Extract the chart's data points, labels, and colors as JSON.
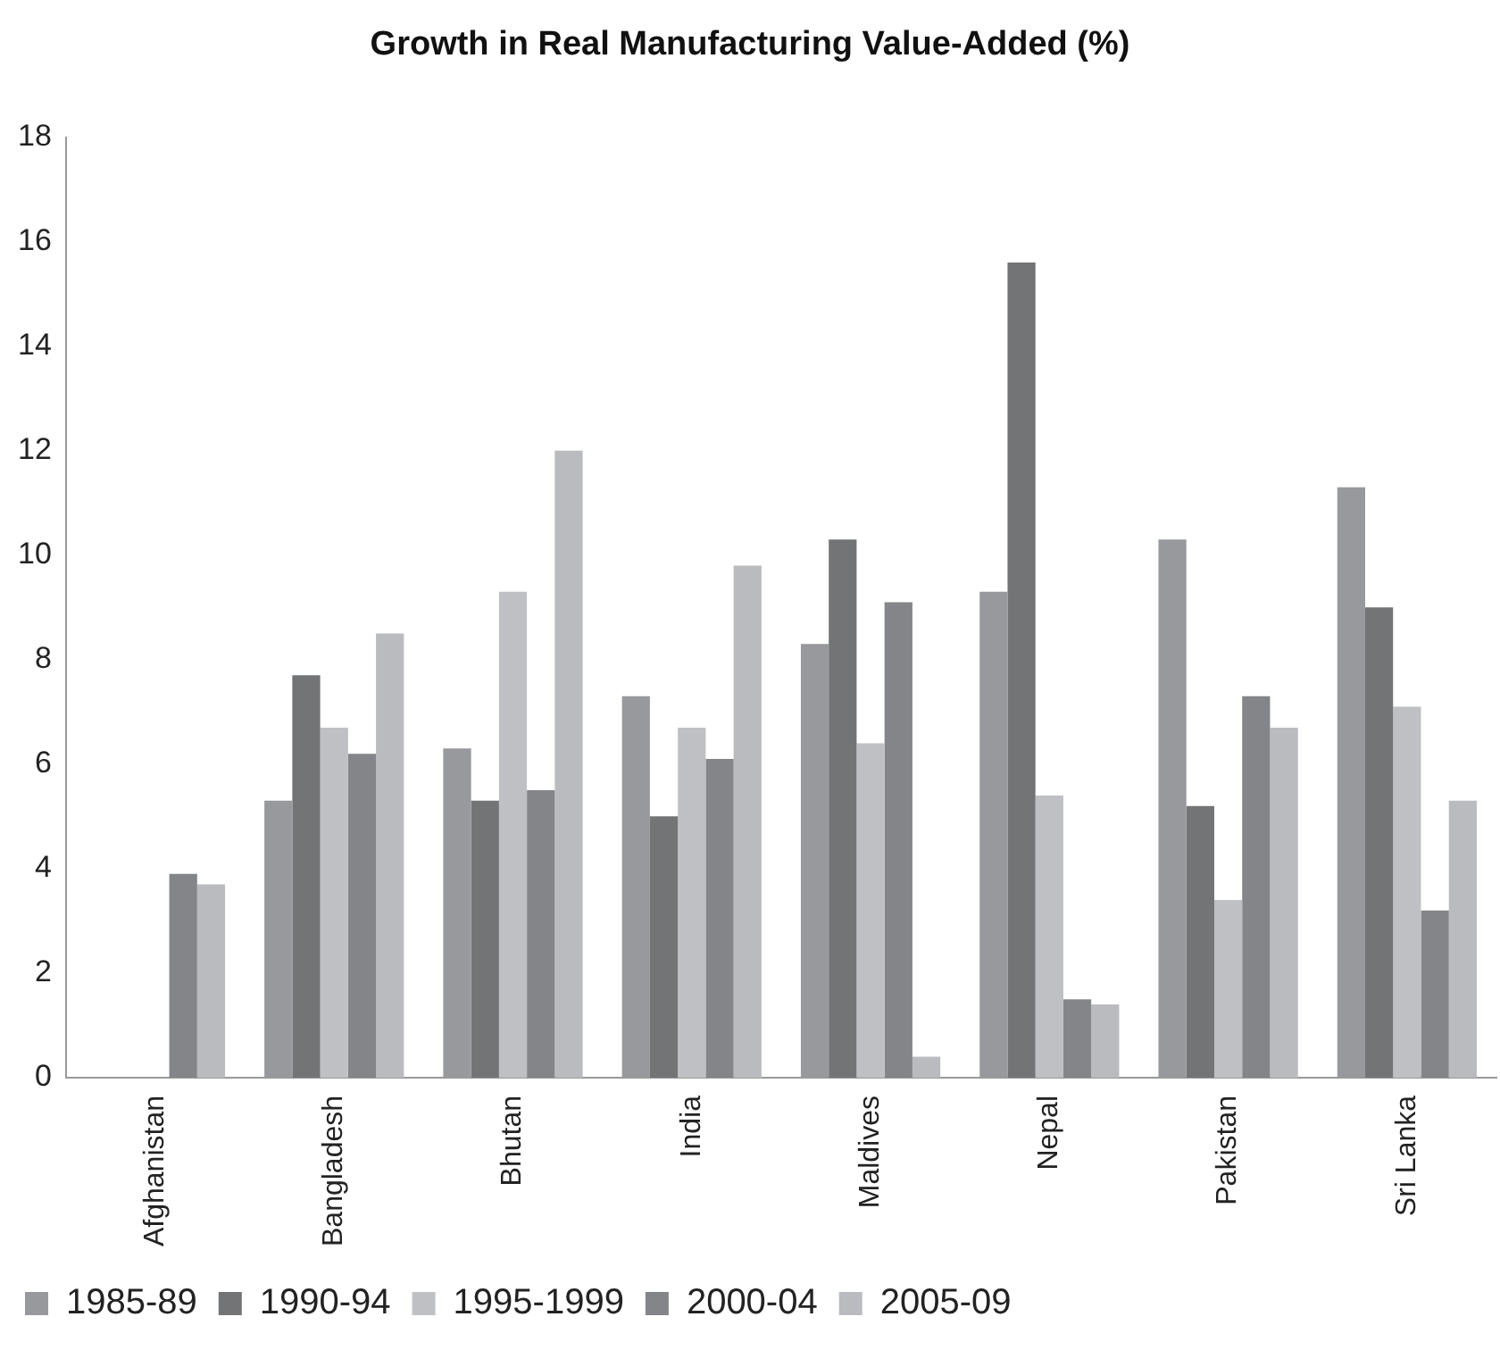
{
  "chart_data": {
    "type": "bar",
    "title": "Growth in Real Manufacturing Value-Added (%)",
    "categories": [
      "Afghanistan",
      "Bangladesh",
      "Bhutan",
      "India",
      "Maldives",
      "Nepal",
      "Pakistan",
      "Sri Lanka"
    ],
    "series": [
      {
        "name": "1985-89",
        "color": "#98999c",
        "values": [
          null,
          5.3,
          6.3,
          7.3,
          8.3,
          9.3,
          10.3,
          11.3
        ]
      },
      {
        "name": "1990-94",
        "color": "#737476",
        "values": [
          null,
          7.7,
          5.3,
          5.0,
          10.3,
          15.6,
          5.2,
          9.0
        ]
      },
      {
        "name": "1995-1999",
        "color": "#bfc0c3",
        "values": [
          null,
          6.7,
          9.3,
          6.7,
          6.4,
          5.4,
          3.4,
          7.1
        ]
      },
      {
        "name": "2000-04",
        "color": "#848588",
        "values": [
          3.9,
          6.2,
          5.5,
          6.1,
          9.1,
          1.5,
          7.3,
          3.2
        ]
      },
      {
        "name": "2005-09",
        "color": "#babbbe",
        "values": [
          3.7,
          8.5,
          12.0,
          9.8,
          0.4,
          1.4,
          6.7,
          5.3
        ]
      }
    ],
    "ylim": [
      0,
      18
    ],
    "yticks": [
      0,
      2,
      4,
      6,
      8,
      10,
      12,
      14,
      16,
      18
    ],
    "grid": false,
    "legend": "bottom left"
  }
}
